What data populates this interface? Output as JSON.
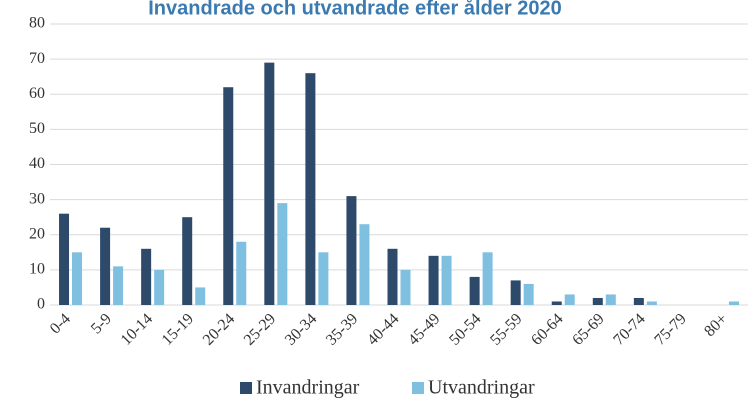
{
  "chart_data": {
    "type": "bar",
    "title": "Invandrade och utvandrade efter ålder 2020",
    "categories": [
      "0-4",
      "5-9",
      "10-14",
      "15-19",
      "20-24",
      "25-29",
      "30-34",
      "35-39",
      "40-44",
      "45-49",
      "50-54",
      "55-59",
      "60-64",
      "65-69",
      "70-74",
      "75-79",
      "80+"
    ],
    "series": [
      {
        "name": "Invandringar",
        "color": "#2e4a6b",
        "values": [
          26,
          22,
          16,
          25,
          62,
          69,
          66,
          31,
          16,
          14,
          8,
          7,
          1,
          2,
          2,
          0,
          0
        ]
      },
      {
        "name": "Utvandringar",
        "color": "#7fbfdf",
        "values": [
          15,
          11,
          10,
          5,
          18,
          29,
          15,
          23,
          10,
          14,
          15,
          6,
          3,
          3,
          1,
          0,
          1
        ]
      }
    ],
    "ylim": [
      0,
      80
    ],
    "yticks": [
      0,
      10,
      20,
      30,
      40,
      50,
      60,
      70,
      80
    ],
    "grid": true
  }
}
